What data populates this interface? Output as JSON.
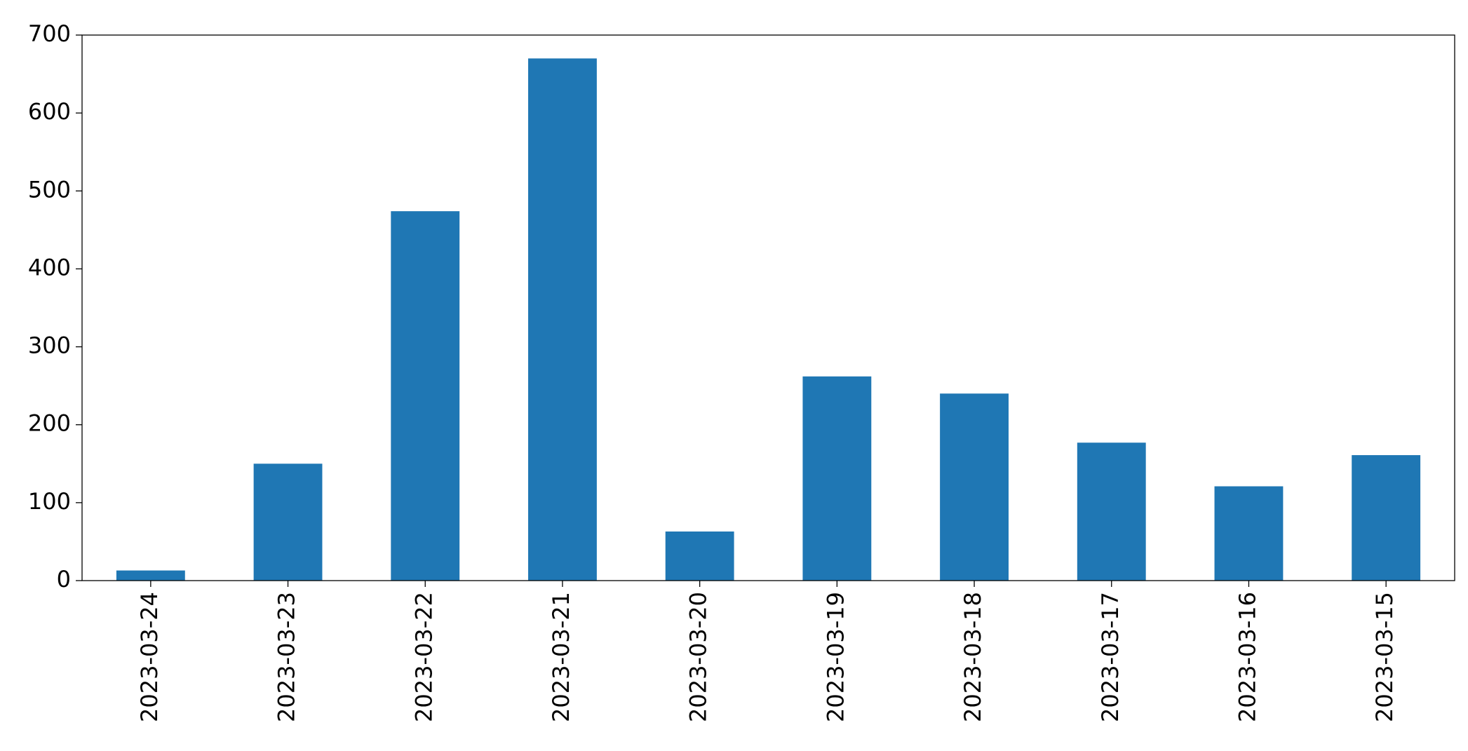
{
  "chart_data": {
    "type": "bar",
    "categories": [
      "2023-03-24",
      "2023-03-23",
      "2023-03-22",
      "2023-03-21",
      "2023-03-20",
      "2023-03-19",
      "2023-03-18",
      "2023-03-17",
      "2023-03-16",
      "2023-03-15"
    ],
    "values": [
      13,
      150,
      474,
      670,
      63,
      262,
      240,
      177,
      121,
      161
    ],
    "color": "#1f77b4",
    "ylim": [
      0,
      700
    ],
    "yticks": [
      0,
      100,
      200,
      300,
      400,
      500,
      600,
      700
    ],
    "grid": false
  }
}
